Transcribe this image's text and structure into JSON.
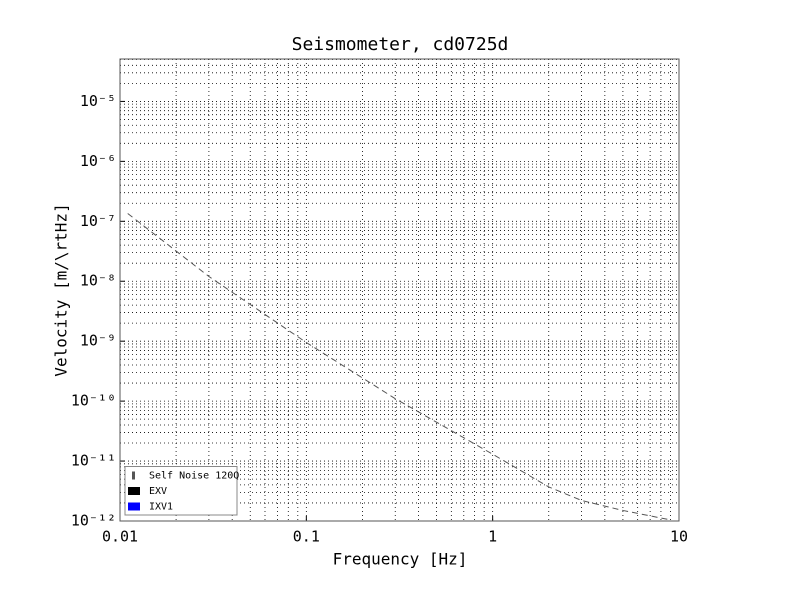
{
  "chart_data": {
    "type": "line",
    "title": "Seismometer, cd0725d",
    "xlabel": "Frequency [Hz]",
    "ylabel": "Velocity [m/\\rtHz]",
    "x": [
      0.011,
      0.03,
      0.1,
      0.3,
      1,
      2,
      3,
      5,
      8.9
    ],
    "series": [
      {
        "name": "Self Noise 120Q",
        "color": "#555555",
        "linestyle": "dashed",
        "values": [
          1.35e-07,
          1.2e-08,
          9.5e-10,
          1.1e-10,
          1.3e-11,
          3.7e-12,
          2.2e-12,
          1.5e-12,
          1.05e-12
        ]
      },
      {
        "name": "EXV",
        "color": "#000000",
        "linestyle": "solid",
        "values": [
          null,
          null,
          null,
          null,
          null,
          null,
          null,
          null,
          null
        ]
      },
      {
        "name": "IXV1",
        "color": "#0000ff",
        "linestyle": "solid",
        "values": [
          null,
          null,
          null,
          null,
          null,
          null,
          null,
          null,
          null
        ]
      }
    ],
    "xscale": "log",
    "yscale": "log",
    "xlim": [
      0.01,
      10
    ],
    "ylim": [
      1e-12,
      5.1e-05
    ],
    "xticks": [
      0.01,
      0.1,
      1,
      10
    ],
    "yticks": [
      {
        "value": 1e-12,
        "label": "10⁻¹²"
      },
      {
        "value": 1e-11,
        "label": "10⁻¹¹"
      },
      {
        "value": 1e-10,
        "label": "10⁻¹⁰"
      },
      {
        "value": 1e-09,
        "label": "10⁻⁹"
      },
      {
        "value": 1e-08,
        "label": "10⁻⁸"
      },
      {
        "value": 1e-07,
        "label": "10⁻⁷"
      },
      {
        "value": 1e-06,
        "label": "10⁻⁶"
      },
      {
        "value": 1e-05,
        "label": "10⁻⁵"
      }
    ],
    "xminorticks": [
      0.02,
      0.03,
      0.04,
      0.05,
      0.06,
      0.07,
      0.08,
      0.09,
      0.2,
      0.3,
      0.4,
      0.5,
      0.6,
      0.7,
      0.8,
      0.9,
      2,
      3,
      4,
      5,
      6,
      7,
      8,
      9
    ],
    "yminorticks": [
      2e-12,
      3e-12,
      4e-12,
      5e-12,
      6e-12,
      7e-12,
      8e-12,
      9e-12,
      2e-11,
      3e-11,
      4e-11,
      5e-11,
      6e-11,
      7e-11,
      8e-11,
      9e-11,
      2e-10,
      3e-10,
      4e-10,
      5e-10,
      6e-10,
      7e-10,
      8e-10,
      9e-10,
      2e-09,
      3e-09,
      4e-09,
      5e-09,
      6e-09,
      7e-09,
      8e-09,
      9e-09,
      2e-08,
      3e-08,
      4e-08,
      5e-08,
      6e-08,
      7e-08,
      8e-08,
      9e-08,
      2e-07,
      3e-07,
      4e-07,
      5e-07,
      6e-07,
      7e-07,
      8e-07,
      9e-07,
      2e-06,
      3e-06,
      4e-06,
      5e-06,
      6e-06,
      7e-06,
      8e-06,
      9e-06,
      2e-05,
      3e-05,
      4e-05,
      5e-05
    ],
    "grid": true,
    "legend": "lower left"
  }
}
